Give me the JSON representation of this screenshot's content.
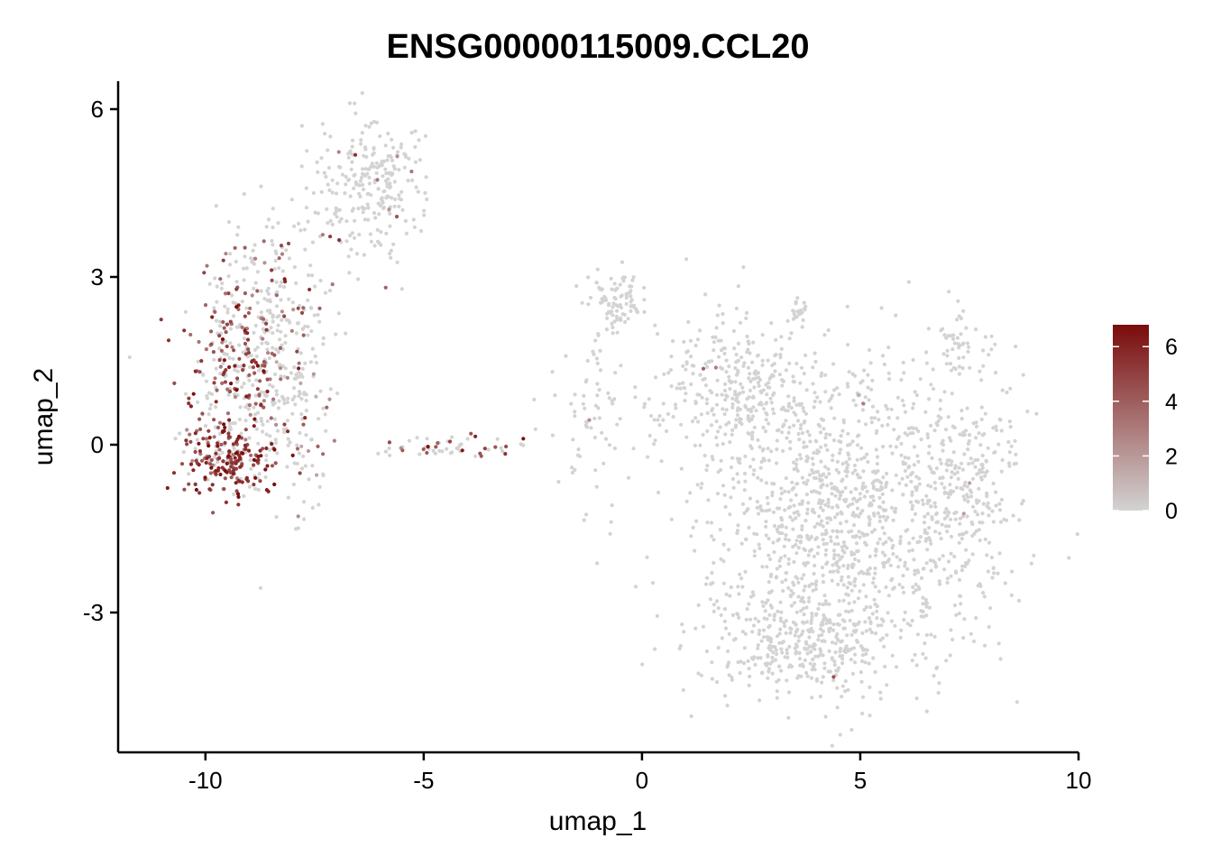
{
  "chart_data": {
    "type": "scatter",
    "title": "ENSG00000115009.CCL20",
    "xlabel": "umap_1",
    "ylabel": "umap_2",
    "xlim": [
      -12,
      10
    ],
    "ylim": [
      -5.5,
      6.5
    ],
    "x_ticks": [
      -10,
      -5,
      0,
      5,
      10
    ],
    "x_tick_labels": [
      "-10",
      "-5",
      "0",
      "5",
      "10"
    ],
    "y_ticks": [
      -3,
      0,
      3,
      6
    ],
    "y_tick_labels": [
      "-3",
      "0",
      "3",
      "6"
    ],
    "grid": false,
    "color_scale": {
      "low_color": "#d3d3d3",
      "high_color": "#7a0b0b",
      "min": 0,
      "max": 6.8,
      "ticks": [
        0,
        2,
        4,
        6
      ],
      "tick_labels": [
        "0",
        "2",
        "4",
        "6"
      ],
      "legend_position": "right"
    },
    "clusters": [
      {
        "cx": -6.3,
        "cy": 4.6,
        "sx": 0.7,
        "sy": 0.6,
        "n": 260,
        "expr_frac": 0.04,
        "expr_mean": 3.0
      },
      {
        "cx": -8.6,
        "cy": 2.6,
        "sx": 0.7,
        "sy": 0.8,
        "n": 180,
        "expr_frac": 0.25,
        "expr_mean": 3.8
      },
      {
        "cx": -9.2,
        "cy": 0.9,
        "sx": 0.65,
        "sy": 0.9,
        "n": 320,
        "expr_frac": 0.55,
        "expr_mean": 4.6
      },
      {
        "cx": -9.6,
        "cy": -0.3,
        "sx": 0.5,
        "sy": 0.35,
        "n": 170,
        "expr_frac": 0.75,
        "expr_mean": 5.4
      },
      {
        "cx": -8.0,
        "cy": 0.6,
        "sx": 0.45,
        "sy": 1.2,
        "n": 130,
        "expr_frac": 0.12,
        "expr_mean": 3.2
      },
      {
        "cx": -4.3,
        "cy": -0.05,
        "sx": 0.7,
        "sy": 0.1,
        "n": 55,
        "expr_frac": 0.35,
        "expr_mean": 4.2
      },
      {
        "cx": -0.6,
        "cy": 2.6,
        "sx": 0.35,
        "sy": 0.3,
        "n": 90,
        "expr_frac": 0.0,
        "expr_mean": 0
      },
      {
        "cx": -1.2,
        "cy": 0.4,
        "sx": 0.5,
        "sy": 0.9,
        "n": 70,
        "expr_frac": 0.03,
        "expr_mean": 4.0
      },
      {
        "cx": 2.2,
        "cy": 0.9,
        "sx": 1.0,
        "sy": 0.7,
        "n": 300,
        "expr_frac": 0.005,
        "expr_mean": 3.0
      },
      {
        "cx": 4.5,
        "cy": -1.2,
        "sx": 1.6,
        "sy": 1.4,
        "n": 1100,
        "expr_frac": 0.005,
        "expr_mean": 2.5
      },
      {
        "cx": 3.8,
        "cy": -3.5,
        "sx": 1.2,
        "sy": 0.55,
        "n": 350,
        "expr_frac": 0.003,
        "expr_mean": 2.0
      },
      {
        "cx": 7.3,
        "cy": -0.8,
        "sx": 0.65,
        "sy": 0.9,
        "n": 240,
        "expr_frac": 0.01,
        "expr_mean": 3.0
      },
      {
        "cx": 7.2,
        "cy": 1.8,
        "sx": 0.25,
        "sy": 0.3,
        "n": 45,
        "expr_frac": 0.0,
        "expr_mean": 0
      },
      {
        "cx": 3.6,
        "cy": 2.4,
        "sx": 0.1,
        "sy": 0.08,
        "n": 20,
        "expr_frac": 0.0,
        "expr_mean": 0
      }
    ]
  }
}
